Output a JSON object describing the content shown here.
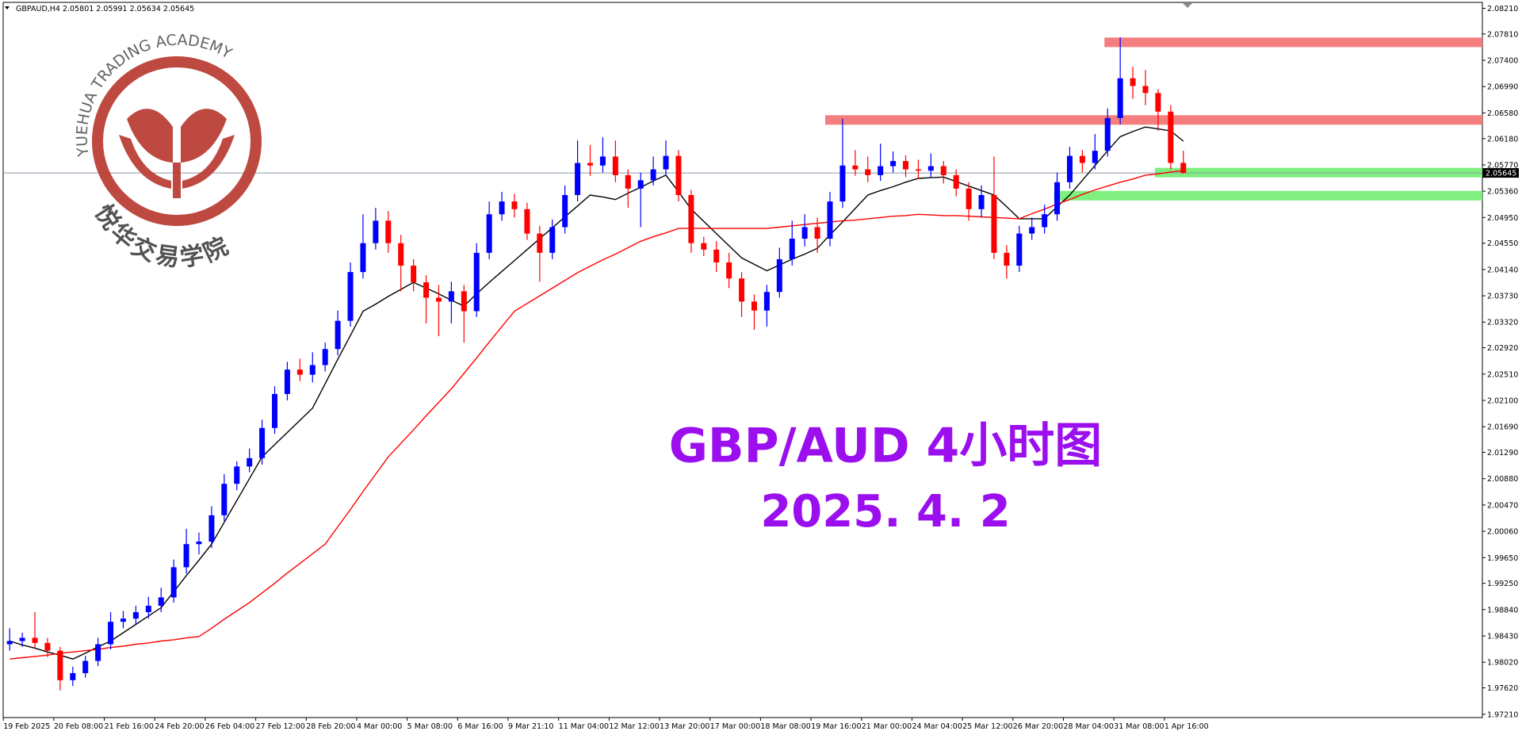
{
  "chart_data": {
    "type": "candlestick",
    "title": "GBPAUD,H4  2.05801 2.05991 2.05634 2.05645",
    "watermark": {
      "ring_text": "YUEHUA TRADING ACADEMY",
      "cn_text": "悦华交易学院"
    },
    "overlay": {
      "title": "GBP/AUD 4小时图",
      "date": "2025. 4. 2"
    },
    "bull_color": "#0000ff",
    "bear_color": "#ff0000",
    "categories": [
      "19 Feb 2025",
      null,
      null,
      null,
      "20 Feb 08:00",
      null,
      null,
      null,
      "21 Feb 16:00",
      null,
      null,
      null,
      "24 Feb 20:00",
      null,
      null,
      null,
      "26 Feb 04:00",
      null,
      null,
      null,
      "27 Feb 12:00",
      null,
      null,
      null,
      "28 Feb 20:00",
      null,
      null,
      null,
      "4 Mar 00:00",
      null,
      null,
      null,
      "5 Mar 08:00",
      null,
      null,
      null,
      "6 Mar 16:00",
      null,
      null,
      null,
      "9 Mar 21:10",
      null,
      null,
      null,
      "11 Mar 04:00",
      null,
      null,
      null,
      "12 Mar 12:00",
      null,
      null,
      null,
      "13 Mar 20:00",
      null,
      null,
      null,
      "17 Mar 00:00",
      null,
      null,
      null,
      "18 Mar 08:00",
      null,
      null,
      null,
      "19 Mar 16:00",
      null,
      null,
      null,
      "21 Mar 00:00",
      null,
      null,
      null,
      "24 Mar 04:00",
      null,
      null,
      null,
      "25 Mar 12:00",
      null,
      null,
      null,
      "26 Mar 20:00",
      null,
      null,
      null,
      "28 Mar 04:00",
      null,
      null,
      null,
      "31 Mar 08:00",
      null,
      null,
      null,
      "1 Apr 16:00",
      null
    ],
    "open": [
      1.983,
      1.9835,
      1.984,
      1.9832,
      1.982,
      1.9774,
      1.9785,
      1.9804,
      1.983,
      1.9865,
      1.987,
      1.988,
      1.989,
      1.9903,
      1.995,
      1.9986,
      1.999,
      2.0031,
      2.008,
      2.0107,
      2.012,
      2.0167,
      2.022,
      2.0258,
      2.025,
      2.0265,
      2.029,
      2.0334,
      2.041,
      2.0455,
      2.049,
      2.0455,
      2.042,
      2.0394,
      2.037,
      2.0364,
      2.038,
      2.0349,
      2.044,
      2.05,
      2.052,
      2.0508,
      2.047,
      2.044,
      2.048,
      2.053,
      2.058,
      2.0576,
      2.059,
      2.0561,
      2.054,
      2.0553,
      2.057,
      2.0591,
      2.053,
      2.0455,
      2.0445,
      2.0425,
      2.04,
      2.0364,
      2.035,
      2.0379,
      2.043,
      2.0462,
      2.048,
      2.0462,
      2.052,
      2.0576,
      2.057,
      2.0561,
      2.0575,
      2.0583,
      2.057,
      2.0568,
      2.0575,
      2.0561,
      2.054,
      2.0508,
      2.053,
      2.044,
      2.042,
      2.047,
      2.048,
      2.05,
      2.055,
      2.0591,
      2.058,
      2.0599,
      2.065,
      2.0712,
      2.07,
      2.0689,
      2.066,
      2.05801
    ],
    "high": [
      1.9855,
      1.9848,
      1.988,
      1.984,
      1.9826,
      1.9795,
      1.9812,
      1.984,
      1.988,
      1.9882,
      1.989,
      1.9904,
      1.9918,
      1.9962,
      2.001,
      2.0004,
      2.0045,
      2.0095,
      2.0115,
      2.0135,
      2.018,
      2.0232,
      2.027,
      2.0275,
      2.0285,
      2.03,
      2.035,
      2.0425,
      2.05,
      2.051,
      2.0505,
      2.0468,
      2.043,
      2.0405,
      2.039,
      2.0395,
      2.039,
      2.0455,
      2.052,
      2.0535,
      2.0532,
      2.0518,
      2.0482,
      2.0492,
      2.0545,
      2.0615,
      2.0608,
      2.062,
      2.0615,
      2.057,
      2.0565,
      2.059,
      2.0615,
      2.06,
      2.0538,
      2.0465,
      2.0458,
      2.044,
      2.041,
      2.0375,
      2.039,
      2.0448,
      2.049,
      2.05,
      2.0495,
      2.0535,
      2.0649,
      2.06,
      2.059,
      2.061,
      2.0598,
      2.0592,
      2.0585,
      2.0595,
      2.0583,
      2.057,
      2.055,
      2.0545,
      2.059,
      2.0452,
      2.0482,
      2.0495,
      2.0515,
      2.0565,
      2.0605,
      2.06,
      2.0625,
      2.0665,
      2.0776,
      2.073,
      2.0725,
      2.0695,
      2.067,
      2.05991
    ],
    "low": [
      1.982,
      1.9826,
      1.9824,
      1.981,
      1.9758,
      1.9765,
      1.9778,
      1.9796,
      1.9822,
      1.9855,
      1.986,
      1.987,
      1.988,
      1.9895,
      1.994,
      1.997,
      1.998,
      2.0022,
      2.007,
      2.0098,
      2.011,
      2.0158,
      2.021,
      2.024,
      2.0238,
      2.0255,
      2.028,
      2.0325,
      2.04,
      2.0445,
      2.044,
      2.038,
      2.038,
      2.033,
      2.031,
      2.033,
      2.03,
      2.034,
      2.043,
      2.049,
      2.0495,
      2.046,
      2.0395,
      2.043,
      2.047,
      2.052,
      2.056,
      2.0565,
      2.055,
      2.051,
      2.048,
      2.0545,
      2.056,
      2.052,
      2.044,
      2.0435,
      2.041,
      2.0385,
      2.034,
      2.032,
      2.0325,
      2.037,
      2.042,
      2.045,
      2.044,
      2.045,
      2.051,
      2.056,
      2.055,
      2.0552,
      2.0565,
      2.0558,
      2.0555,
      2.0558,
      2.0548,
      2.0528,
      2.049,
      2.0495,
      2.043,
      2.04,
      2.041,
      2.046,
      2.047,
      2.049,
      2.054,
      2.0565,
      2.057,
      2.059,
      2.064,
      2.068,
      2.067,
      2.063,
      2.057,
      2.05634
    ],
    "close": [
      1.9835,
      1.984,
      1.9832,
      1.982,
      1.9774,
      1.9785,
      1.9804,
      1.983,
      1.9865,
      1.987,
      1.988,
      1.989,
      1.9903,
      1.995,
      1.9986,
      1.999,
      2.0031,
      2.008,
      2.0107,
      2.012,
      2.0167,
      2.022,
      2.0258,
      2.025,
      2.0265,
      2.029,
      2.0334,
      2.041,
      2.0455,
      2.049,
      2.0455,
      2.042,
      2.0394,
      2.037,
      2.0364,
      2.038,
      2.0349,
      2.044,
      2.05,
      2.052,
      2.0508,
      2.047,
      2.044,
      2.048,
      2.053,
      2.058,
      2.0576,
      2.059,
      2.0561,
      2.054,
      2.0553,
      2.057,
      2.0591,
      2.053,
      2.0455,
      2.0445,
      2.0425,
      2.04,
      2.0364,
      2.035,
      2.0379,
      2.043,
      2.0462,
      2.048,
      2.0462,
      2.052,
      2.0576,
      2.057,
      2.0561,
      2.0575,
      2.0583,
      2.057,
      2.0568,
      2.0575,
      2.0561,
      2.054,
      2.0508,
      2.053,
      2.044,
      2.042,
      2.047,
      2.048,
      2.05,
      2.055,
      2.0591,
      2.058,
      2.0599,
      2.065,
      2.0712,
      2.07,
      2.0689,
      2.066,
      2.05801,
      2.05645
    ],
    "lines": [
      {
        "color": "#000000",
        "values": [
          1.9835,
          1.9829,
          1.9824,
          1.9818,
          1.9813,
          1.9807,
          1.9816,
          1.9826,
          1.9835,
          1.9848,
          1.9861,
          1.9874,
          1.9887,
          1.9912,
          1.9937,
          1.9961,
          1.9986,
          2.002,
          2.0054,
          2.0088,
          2.0122,
          2.0141,
          2.016,
          2.0179,
          2.0198,
          2.0236,
          2.0274,
          2.0311,
          2.0349,
          2.036,
          2.0372,
          2.0383,
          2.0394,
          2.0385,
          2.0376,
          2.0366,
          2.0357,
          2.0376,
          2.0394,
          2.0411,
          2.0428,
          2.0445,
          2.0462,
          2.0479,
          2.0496,
          2.0513,
          2.053,
          2.0527,
          2.0523,
          2.0533,
          2.0542,
          2.0552,
          2.0561,
          2.0535,
          2.0508,
          2.0489,
          2.047,
          2.0451,
          2.0432,
          2.0422,
          2.0412,
          2.0421,
          2.043,
          2.0438,
          2.0447,
          2.0468,
          2.0488,
          2.0509,
          2.053,
          2.0537,
          2.0543,
          2.055,
          2.0556,
          2.0557,
          2.0558,
          2.0551,
          2.0544,
          2.0537,
          2.053,
          2.0512,
          2.0493,
          2.0493,
          2.0493,
          2.0512,
          2.053,
          2.0553,
          2.0576,
          2.0599,
          2.0621,
          2.0629,
          2.0636,
          2.0633,
          2.063,
          2.0614
        ]
      },
      {
        "color": "#ff0000",
        "values": [
          1.9807,
          1.9809,
          1.9811,
          1.9813,
          1.9816,
          1.9818,
          1.982,
          1.9822,
          1.9825,
          1.9827,
          1.983,
          1.9832,
          1.9835,
          1.9837,
          1.984,
          1.9842,
          1.9855,
          1.9869,
          1.9882,
          1.9895,
          1.991,
          1.9925,
          1.9941,
          1.9956,
          1.9971,
          1.9986,
          2.0013,
          2.004,
          2.0068,
          2.0095,
          2.0122,
          2.0143,
          2.0164,
          2.0186,
          2.0207,
          2.0228,
          2.0252,
          2.0276,
          2.0301,
          2.0325,
          2.0349,
          2.0361,
          2.0373,
          2.0385,
          2.0397,
          2.0409,
          2.0419,
          2.0429,
          2.0438,
          2.0448,
          2.0458,
          2.0465,
          2.0471,
          2.0478,
          2.0478,
          2.0478,
          2.0478,
          2.0478,
          2.0478,
          2.0478,
          2.0478,
          2.048,
          2.0482,
          2.0484,
          2.0486,
          2.0488,
          2.049,
          2.0491,
          2.0493,
          2.0495,
          2.0497,
          2.0498,
          2.05,
          2.0499,
          2.0498,
          2.0498,
          2.0497,
          2.0496,
          2.0495,
          2.0494,
          2.0493,
          2.0501,
          2.0508,
          2.0516,
          2.0523,
          2.0531,
          2.0538,
          2.0544,
          2.055,
          2.0555,
          2.0561,
          2.0563,
          2.0566,
          2.0568
        ]
      }
    ],
    "zones": [
      {
        "price": 2.0768,
        "color": "#f47e7e"
      },
      {
        "price": 2.0647,
        "color": "#f47e7e"
      },
      {
        "price": 2.0565,
        "color": "#7ff07f"
      },
      {
        "price": 2.0529,
        "color": "#7ff07f"
      }
    ],
    "last_price_label": "2.05645",
    "ylim": [
      1.9717,
      2.0829
    ],
    "yticks": [
      {
        "value": 1.9721,
        "label": "1.97210"
      },
      {
        "value": 1.9762,
        "label": "1.97620"
      },
      {
        "value": 1.9802,
        "label": "1.98020"
      },
      {
        "value": 1.9843,
        "label": "1.98430"
      },
      {
        "value": 1.9884,
        "label": "1.98840"
      },
      {
        "value": 1.9925,
        "label": "1.99250"
      },
      {
        "value": 1.9965,
        "label": "1.99650"
      },
      {
        "value": 2.0006,
        "label": "2.00060"
      },
      {
        "value": 2.0047,
        "label": "2.00470"
      },
      {
        "value": 2.0088,
        "label": "2.00880"
      },
      {
        "value": 2.0129,
        "label": "2.01290"
      },
      {
        "value": 2.0169,
        "label": "2.01690"
      },
      {
        "value": 2.021,
        "label": "2.02100"
      },
      {
        "value": 2.0251,
        "label": "2.02510"
      },
      {
        "value": 2.0292,
        "label": "2.02920"
      },
      {
        "value": 2.0332,
        "label": "2.03320"
      },
      {
        "value": 2.0373,
        "label": "2.03730"
      },
      {
        "value": 2.0414,
        "label": "2.04140"
      },
      {
        "value": 2.0455,
        "label": "2.04550"
      },
      {
        "value": 2.0495,
        "label": "2.04950"
      },
      {
        "value": 2.0536,
        "label": "2.05360"
      },
      {
        "value": 2.0577,
        "label": "2.05770"
      },
      {
        "value": 2.0618,
        "label": "2.06180"
      },
      {
        "value": 2.0658,
        "label": "2.06580"
      },
      {
        "value": 2.0699,
        "label": "2.06990"
      },
      {
        "value": 2.074,
        "label": "2.07400"
      },
      {
        "value": 2.0781,
        "label": "2.07810"
      },
      {
        "value": 2.0821,
        "label": "2.08210"
      }
    ]
  }
}
